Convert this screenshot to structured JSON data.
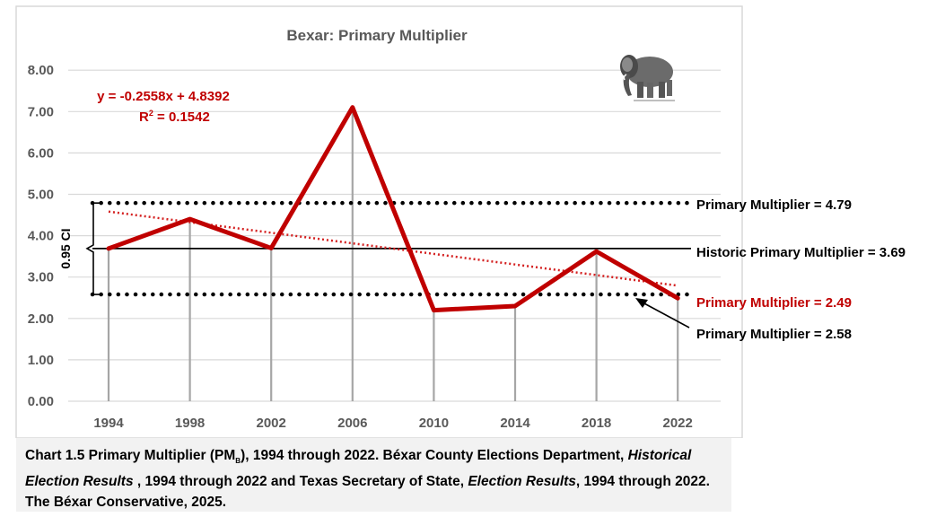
{
  "chart_data": {
    "type": "line",
    "title": "Bexar: Primary Multiplier",
    "categories": [
      "1994",
      "1998",
      "2002",
      "2006",
      "2010",
      "2014",
      "2018",
      "2022"
    ],
    "series": [
      {
        "values": [
          3.69,
          4.4,
          3.7,
          7.1,
          2.2,
          2.3,
          3.62,
          2.49
        ]
      }
    ],
    "ylim": [
      0,
      8
    ],
    "yticks": [
      "0.00",
      "1.00",
      "2.00",
      "3.00",
      "4.00",
      "5.00",
      "6.00",
      "7.00",
      "8.00"
    ],
    "grid": true,
    "reference_lines": [
      {
        "value": 4.79,
        "style": "dotted",
        "label": "Primary Multiplier = 4.79"
      },
      {
        "value": 3.69,
        "style": "solid",
        "label": "Historic Primary Multiplier = 3.69"
      },
      {
        "value": 2.58,
        "style": "dotted",
        "label": "Primary Multiplier = 2.58"
      }
    ],
    "last_point_label": "Primary Multiplier = 2.49",
    "trendline": {
      "equation": "y = -0.2558x + 4.8392",
      "r2_label": "R",
      "r2_sup": "2",
      "r2_value": " = 0.1542",
      "slope": -0.2558,
      "intercept": 4.8392
    },
    "ci_label": "0.95 CI",
    "colors": {
      "series": "#c00000",
      "trend": "#d42020",
      "grid": "#a6a6a6",
      "ref": "#000000",
      "label_red": "#c00000"
    }
  },
  "caption": {
    "p1": "Chart 1.5 Primary Multiplier (PM",
    "sub": "B",
    "p2": "), 1994 through 2022. Béxar County Elections Department, ",
    "i1": "Historical Election Results",
    "p3": " , 1994 through 2022 and Texas Secretary of State, ",
    "i2": "Election Results",
    "p4": ", 1994 through 2022. The Béxar Conservative, 2025."
  },
  "logo": {
    "icon": "elephant-icon"
  }
}
